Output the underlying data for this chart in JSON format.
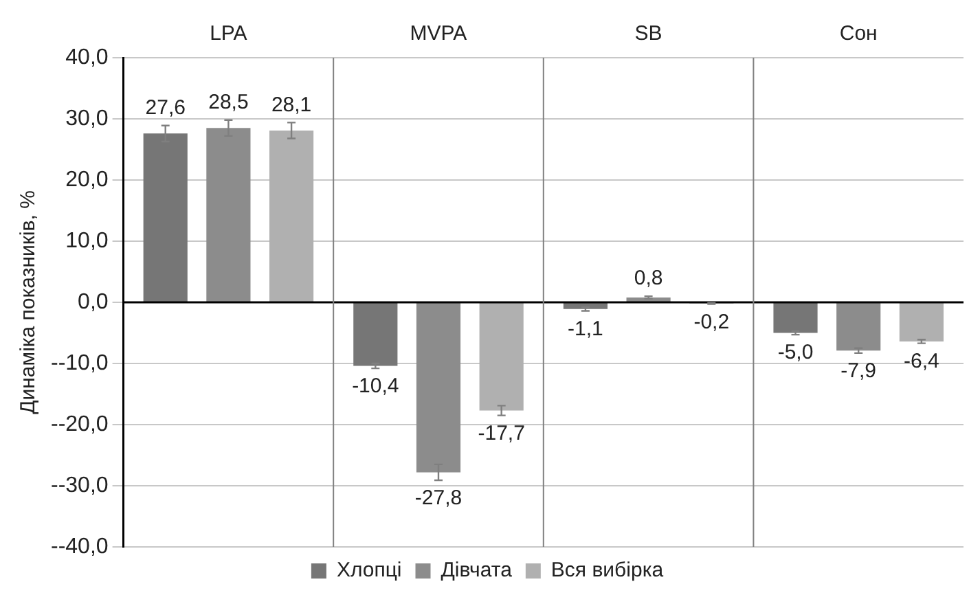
{
  "chart_data": {
    "type": "bar",
    "ylabel": "Динаміка показників, %",
    "categories": [
      "LPA",
      "MVPA",
      "SB",
      "Сон"
    ],
    "series": [
      {
        "name": "Хлопці",
        "color": "#767676",
        "values": [
          27.6,
          -10.4,
          -1.1,
          -5.0
        ],
        "errors": [
          1.3,
          0.4,
          0.3,
          0.3
        ],
        "value_labels": [
          "27,6",
          "-10,4",
          "-1,1",
          "-5,0"
        ]
      },
      {
        "name": "Дівчата",
        "color": "#8c8c8c",
        "values": [
          28.5,
          -27.8,
          0.8,
          -7.9
        ],
        "errors": [
          1.3,
          1.3,
          0.2,
          0.4
        ],
        "value_labels": [
          "28,5",
          "-27,8",
          "0,8",
          "-7,9"
        ]
      },
      {
        "name": "Вся вибірка",
        "color": "#b0b0b0",
        "values": [
          28.1,
          -17.7,
          -0.2,
          -6.4
        ],
        "errors": [
          1.3,
          0.8,
          0.1,
          0.3
        ],
        "value_labels": [
          "28,1",
          "-17,7",
          "-0,2",
          "-6,4"
        ]
      }
    ],
    "ylim": [
      -40,
      40
    ],
    "yticks": [
      {
        "value": -40,
        "label": "--40,0"
      },
      {
        "value": -30,
        "label": "--30,0"
      },
      {
        "value": -20,
        "label": "--20,0"
      },
      {
        "value": -10,
        "label": "--10,0"
      },
      {
        "value": 0,
        "label": "0,0"
      },
      {
        "value": 10,
        "label": "10,0"
      },
      {
        "value": 20,
        "label": "20,0"
      },
      {
        "value": 30,
        "label": "30,0"
      },
      {
        "value": 40,
        "label": "40,0"
      }
    ],
    "grid": "y",
    "legend": "bottom"
  }
}
